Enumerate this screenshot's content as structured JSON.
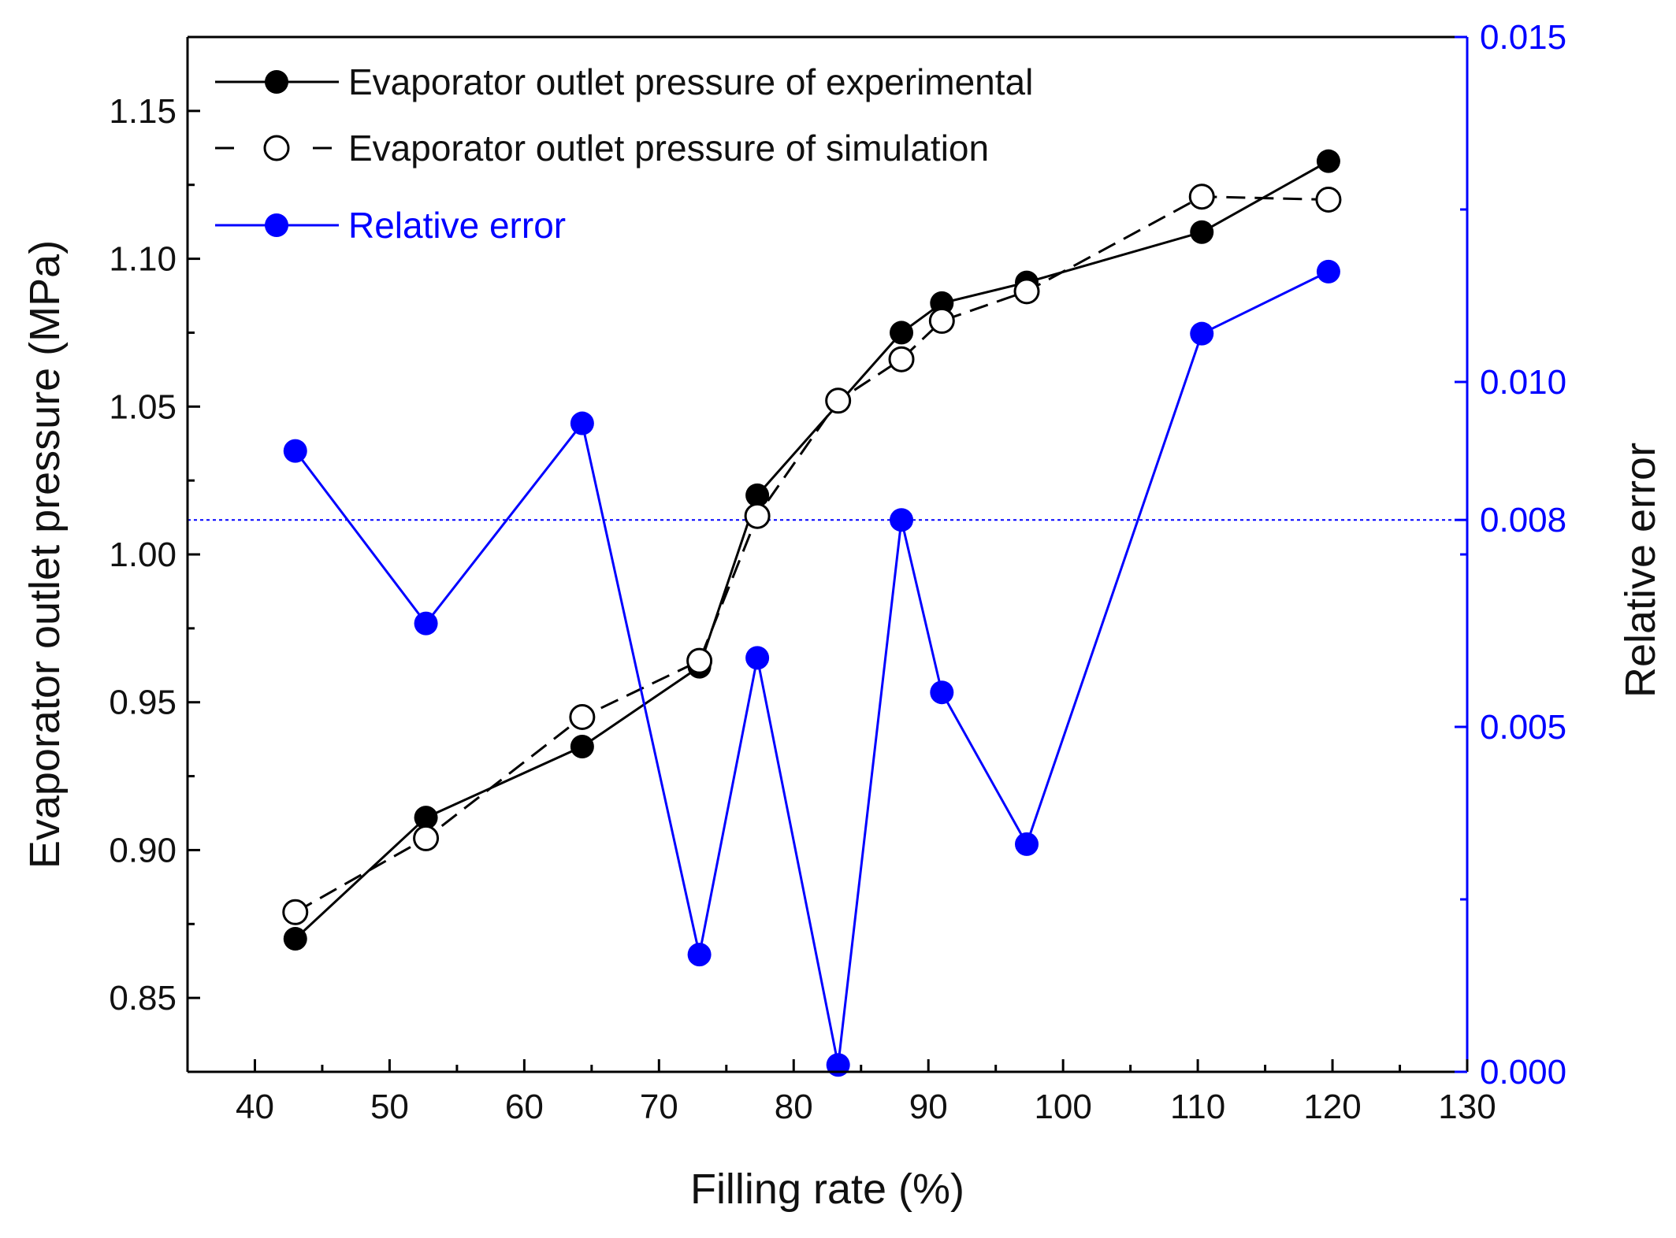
{
  "chart_data": {
    "type": "line",
    "xlabel": "Filling rate (%)",
    "ylabel_left": "Evaporator outlet pressure (MPa)",
    "ylabel_right": "Relative error",
    "xlim": [
      35,
      130
    ],
    "xticks": [
      40,
      50,
      60,
      70,
      80,
      90,
      100,
      110,
      120,
      130
    ],
    "ylim_left": [
      0.825,
      1.175
    ],
    "yticks_left": [
      0.85,
      0.9,
      0.95,
      1.0,
      1.05,
      1.1,
      1.15
    ],
    "yticklabels_left": [
      "0.85",
      "0.90",
      "0.95",
      "1.00",
      "1.05",
      "1.10",
      "1.15"
    ],
    "ylim_right": [
      0.0,
      0.015
    ],
    "yticks_right": [
      0.0,
      0.005,
      0.008,
      0.01,
      0.015
    ],
    "yticklabels_right": [
      "0.000",
      "0.005",
      "0.008",
      "0.010",
      "0.015"
    ],
    "yminor_right": [
      0.0025,
      0.0075,
      0.0125
    ],
    "reference_line": {
      "axis": "right",
      "value": 0.008,
      "style": "dotted",
      "color": "#0000ff"
    },
    "series": [
      {
        "name": "Evaporator outlet pressure of experimental",
        "axis": "left",
        "color": "#000000",
        "marker": "filled-circle",
        "line": "solid",
        "x": [
          43,
          52.7,
          64.3,
          73,
          77.3,
          88,
          91,
          97.3,
          110.3,
          119.7
        ],
        "y": [
          0.87,
          0.911,
          0.935,
          0.962,
          1.02,
          1.075,
          1.085,
          1.092,
          1.109,
          1.133
        ]
      },
      {
        "name": "Evaporator outlet pressure of simulation",
        "axis": "left",
        "color": "#000000",
        "marker": "open-circle",
        "line": "dashed",
        "x": [
          43,
          52.7,
          64.3,
          73,
          77.3,
          83.3,
          88,
          91,
          97.3,
          110.3,
          119.7
        ],
        "y": [
          0.879,
          0.904,
          0.945,
          0.964,
          1.013,
          1.052,
          1.066,
          1.079,
          1.089,
          1.121,
          1.12
        ]
      },
      {
        "name": "Relative error",
        "axis": "right",
        "color": "#0000ff",
        "marker": "filled-circle",
        "line": "solid",
        "x": [
          43,
          52.7,
          64.3,
          73,
          77.3,
          83.3,
          88,
          91,
          97.3,
          110.3,
          119.7
        ],
        "y": [
          0.009,
          0.0065,
          0.0094,
          0.0017,
          0.006,
          0.0001,
          0.008,
          0.0055,
          0.0033,
          0.0107,
          0.0116
        ]
      }
    ]
  }
}
